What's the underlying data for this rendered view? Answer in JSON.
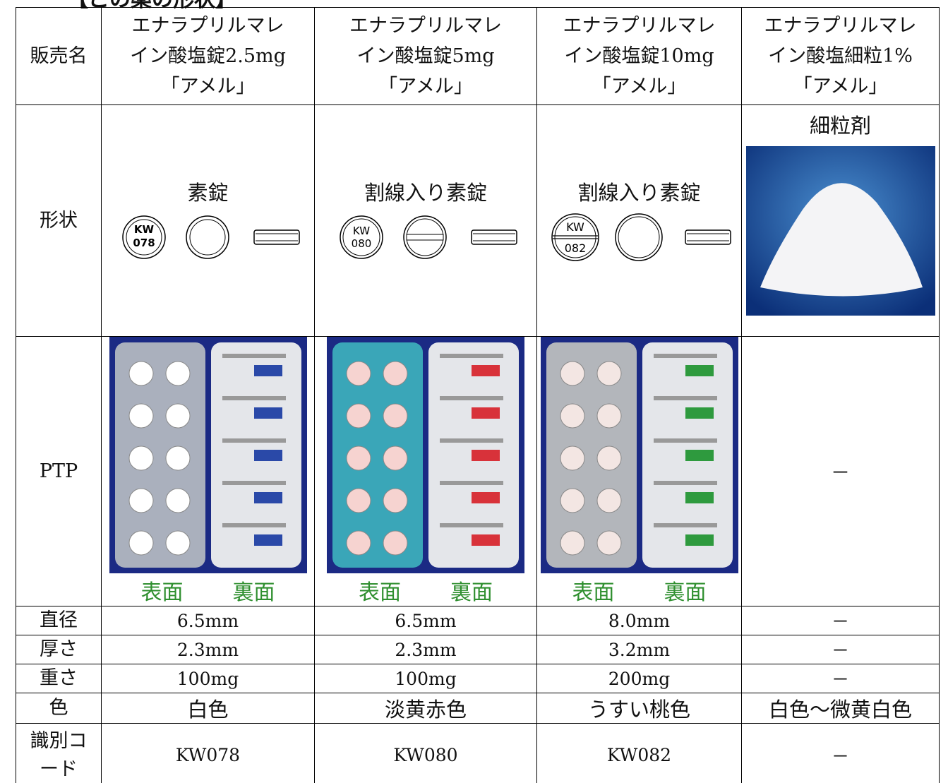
{
  "header": {
    "title": "【この薬の形状】"
  },
  "table": {
    "row_labels": [
      "販売名",
      "形状",
      "PTP",
      "直径",
      "厚さ",
      "重さ",
      "色",
      "識別コード"
    ],
    "products": [
      {
        "name_lines": [
          "エナラプリルマレ",
          "イン酸塩錠2.5mg",
          "「アメル」"
        ],
        "shape": "素錠",
        "imprint": [
          "KW",
          "078"
        ],
        "ptp_front": "表面",
        "ptp_back": "裏面",
        "diameter": "6.5mm",
        "thickness": "2.3mm",
        "weight": "100mg",
        "color": "白色",
        "code": "KW078"
      },
      {
        "name_lines": [
          "エナラプリルマレ",
          "イン酸塩錠5mg",
          "「アメル」"
        ],
        "shape": "割線入り素錠",
        "imprint": [
          "KW",
          "080"
        ],
        "ptp_front": "表面",
        "ptp_back": "裏面",
        "diameter": "6.5mm",
        "thickness": "2.3mm",
        "weight": "100mg",
        "color": "淡黄赤色",
        "code": "KW080"
      },
      {
        "name_lines": [
          "エナラプリルマレ",
          "イン酸塩錠10mg",
          "「アメル」"
        ],
        "shape": "割線入り素錠",
        "imprint": [
          "KW",
          "082"
        ],
        "ptp_front": "表面",
        "ptp_back": "裏面",
        "diameter": "8.0mm",
        "thickness": "3.2mm",
        "weight": "200mg",
        "color": "うすい桃色",
        "code": "KW082"
      },
      {
        "name_lines": [
          "エナラプリルマレ",
          "イン酸塩細粒1%",
          "「アメル」"
        ],
        "shape": "細粒剤",
        "ptp": "－",
        "diameter": "－",
        "thickness": "－",
        "weight": "－",
        "color": "白色～微黄白色",
        "code": "－"
      }
    ]
  }
}
